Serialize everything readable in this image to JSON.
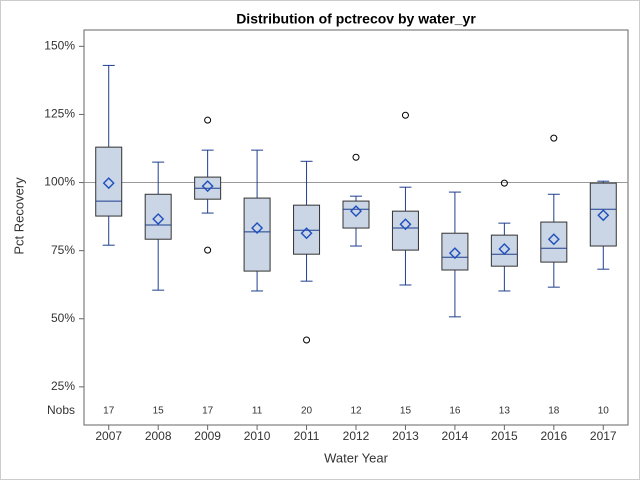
{
  "chart_data": {
    "type": "box",
    "title": "Distribution of pctrecov by water_yr",
    "x_label": "Water Year",
    "y_label": "Pct Recovery",
    "categories": [
      "2007",
      "2008",
      "2009",
      "2010",
      "2011",
      "2012",
      "2013",
      "2014",
      "2015",
      "2016",
      "2017"
    ],
    "whisker_low": [
      77.0,
      60.5,
      88.8,
      60.2,
      63.8,
      76.7,
      62.4,
      50.7,
      60.2,
      61.6,
      68.2
    ],
    "q1": [
      87.7,
      79.2,
      93.9,
      67.5,
      73.7,
      83.3,
      75.2,
      67.9,
      69.3,
      70.8,
      76.7
    ],
    "median": [
      93.2,
      84.4,
      97.9,
      81.9,
      82.5,
      90.2,
      83.3,
      72.6,
      73.7,
      75.9,
      90.2
    ],
    "q3": [
      113.0,
      95.7,
      102.0,
      94.3,
      91.7,
      93.2,
      89.5,
      81.4,
      80.7,
      85.5,
      99.8
    ],
    "whisker_high": [
      143.0,
      107.5,
      111.9,
      111.9,
      107.8,
      95.0,
      98.3,
      96.5,
      85.1,
      95.7,
      100.5
    ],
    "mean": [
      99.8,
      86.6,
      98.7,
      83.3,
      81.4,
      89.5,
      84.7,
      74.1,
      75.6,
      79.2,
      88.0
    ],
    "outliers": [
      [],
      [],
      [
        122.9,
        75.2
      ],
      [],
      [
        42.2
      ],
      [
        109.3
      ],
      [
        124.7
      ],
      [],
      [
        99.8
      ],
      [
        116.3
      ],
      []
    ],
    "nobs": {
      "label": "Nobs",
      "values": [
        17,
        15,
        17,
        11,
        20,
        12,
        15,
        16,
        13,
        18,
        10
      ]
    },
    "reference_line": 100,
    "box_color": "#cad5e5",
    "whisker_color": "#1f3f8f",
    "mean_color": "#1e4fbd",
    "ylim": [
      11,
      156
    ],
    "yticks": [
      {
        "value": 25,
        "label": "25%"
      },
      {
        "value": 50,
        "label": "50%"
      },
      {
        "value": 75,
        "label": "75%"
      },
      {
        "value": 100,
        "label": "100%"
      },
      {
        "value": 125,
        "label": "125%"
      },
      {
        "value": 150,
        "label": "150%"
      }
    ]
  }
}
